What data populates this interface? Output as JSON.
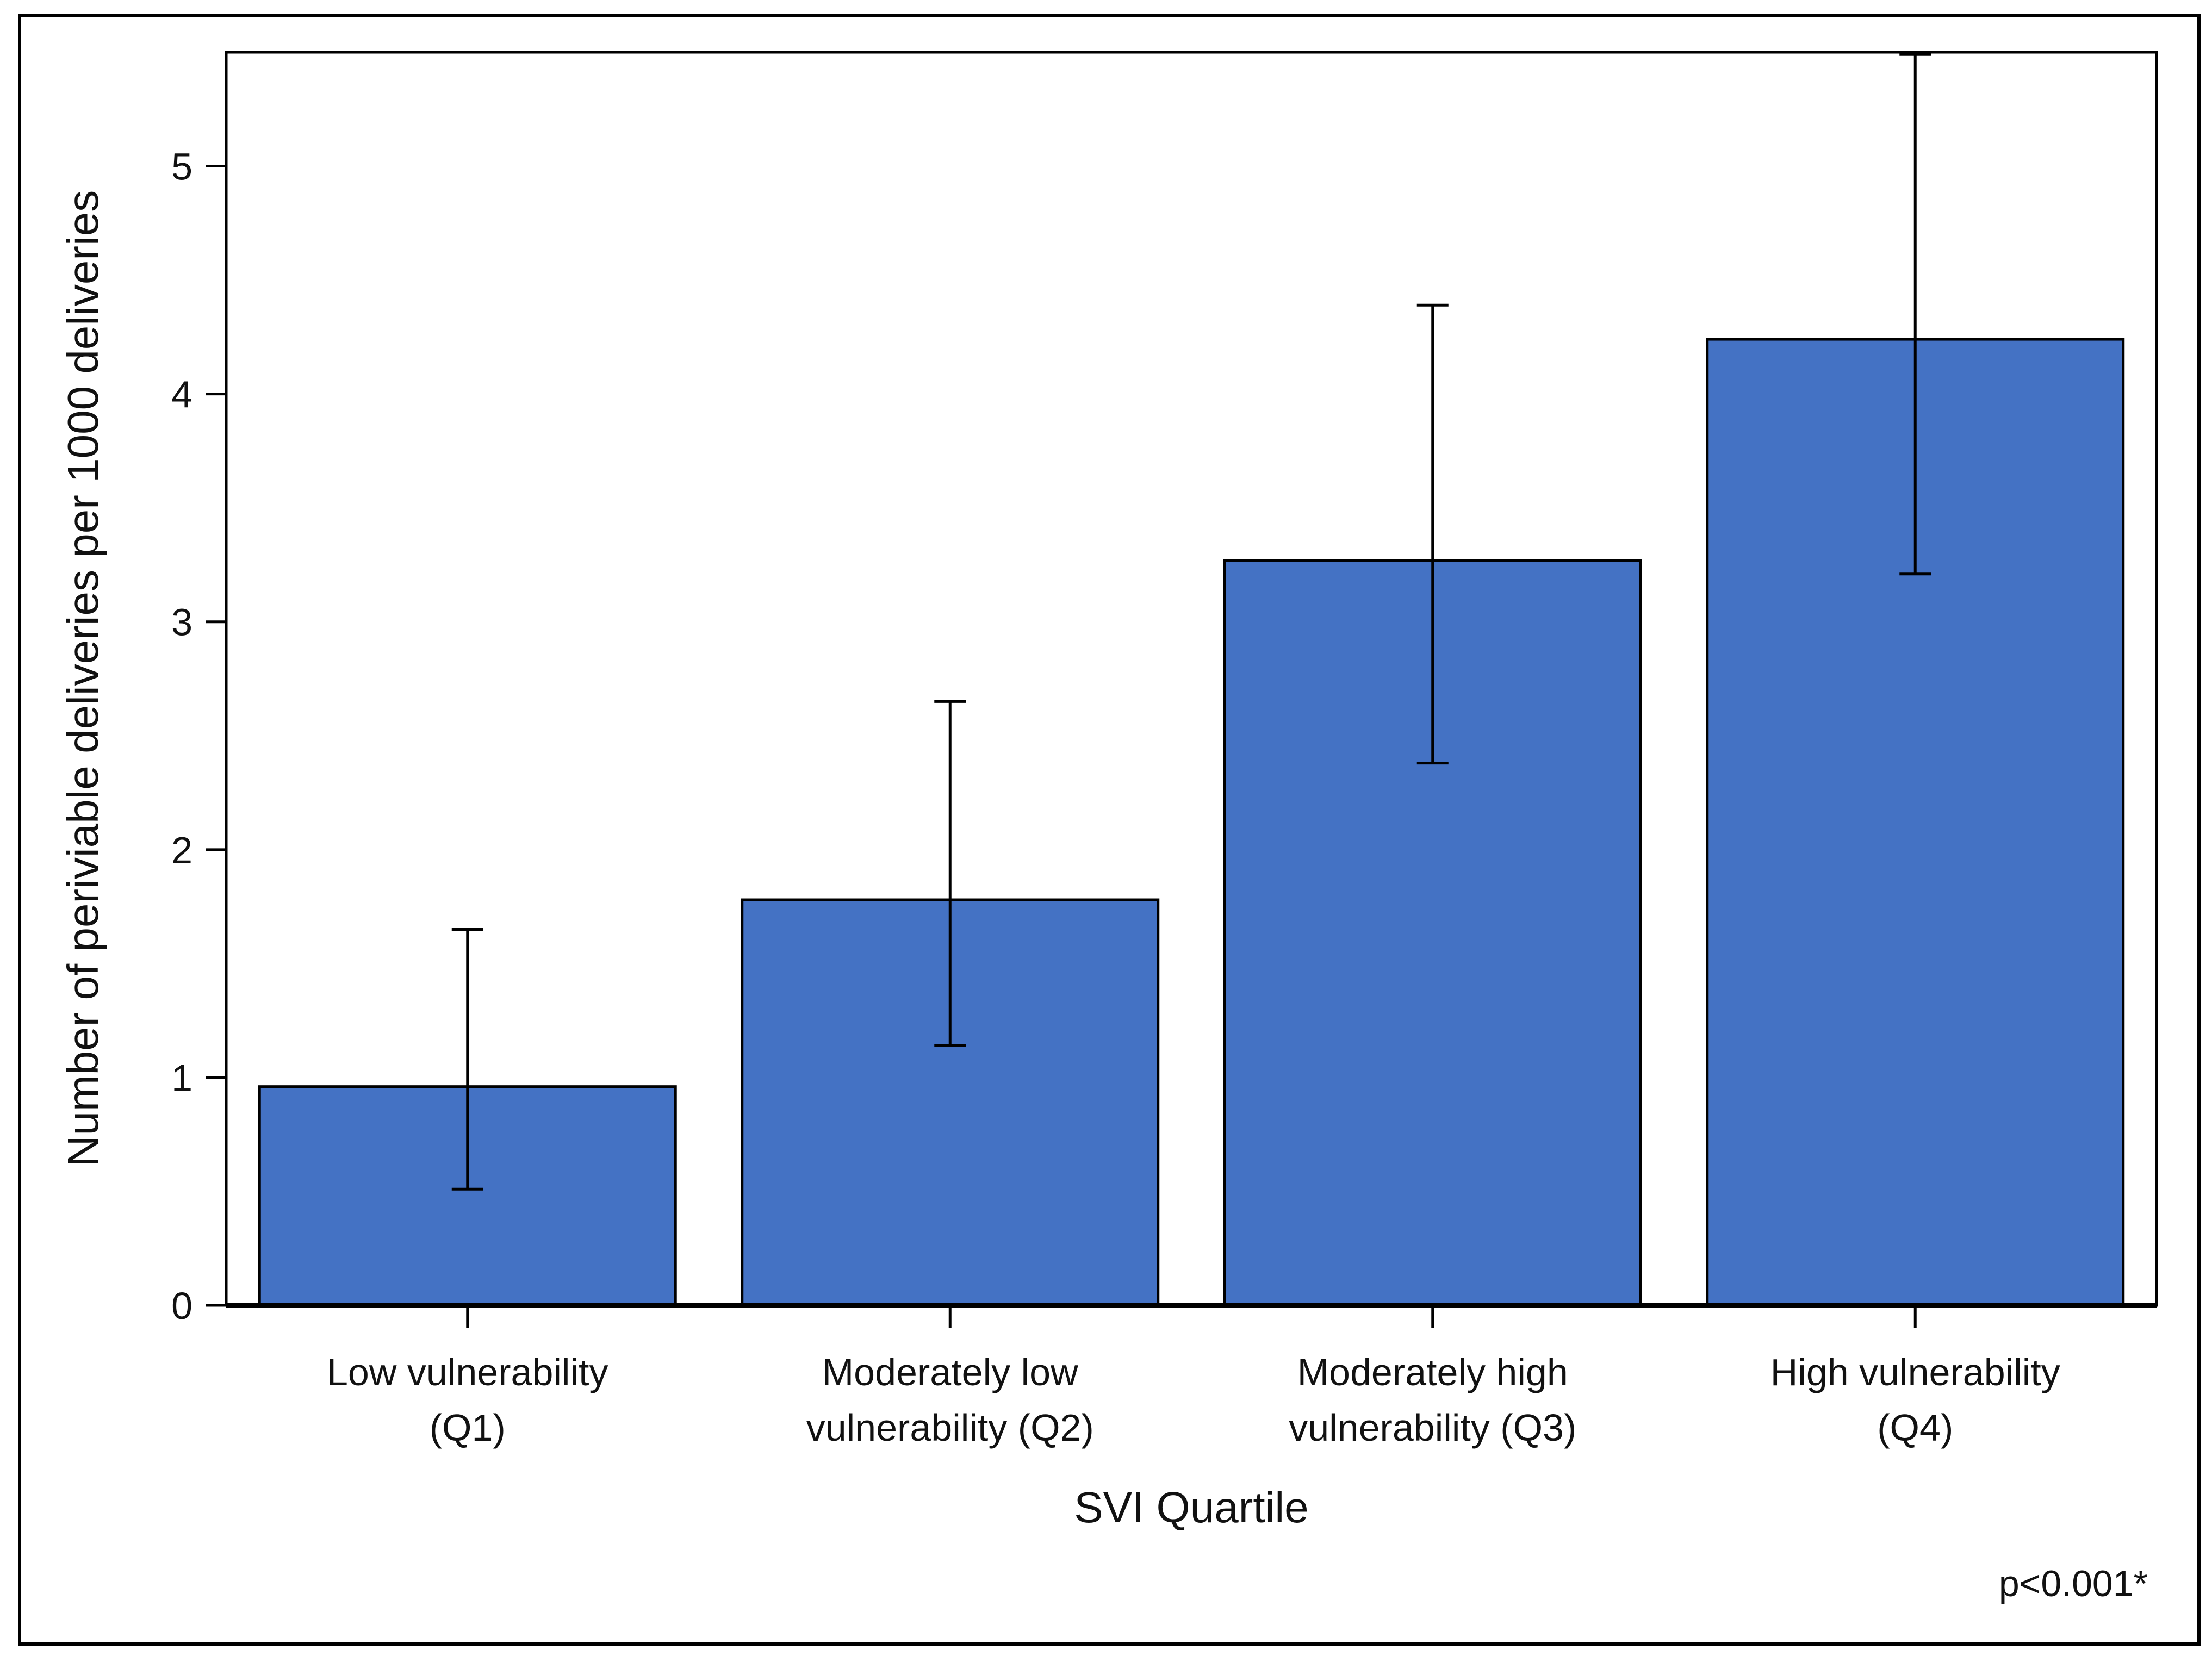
{
  "chart_data": {
    "type": "bar",
    "title": "",
    "xlabel": "SVI Quartile",
    "ylabel": "Number of periviable deliveries per 1000 deliveries",
    "ylim": [
      0,
      5.5
    ],
    "yticks": [
      0,
      1,
      2,
      3,
      4,
      5
    ],
    "ytick_labels": [
      "0",
      "1",
      "2",
      "3",
      "4",
      "5"
    ],
    "categories": [
      {
        "line1": "Low vulnerability",
        "line2": "(Q1)"
      },
      {
        "line1": "Moderately low",
        "line2": "vulnerability (Q2)"
      },
      {
        "line1": "Moderately high",
        "line2": "vulnerability (Q3)"
      },
      {
        "line1": "High vulnerability",
        "line2": "(Q4)"
      }
    ],
    "values": [
      0.96,
      1.78,
      3.27,
      4.24
    ],
    "error_low": [
      0.51,
      1.14,
      2.38,
      3.21
    ],
    "error_high": [
      1.65,
      2.65,
      4.39,
      5.49
    ],
    "bar_color": "#4472C4",
    "annotation": "p<0.001*",
    "grid": false,
    "legend": "none"
  }
}
